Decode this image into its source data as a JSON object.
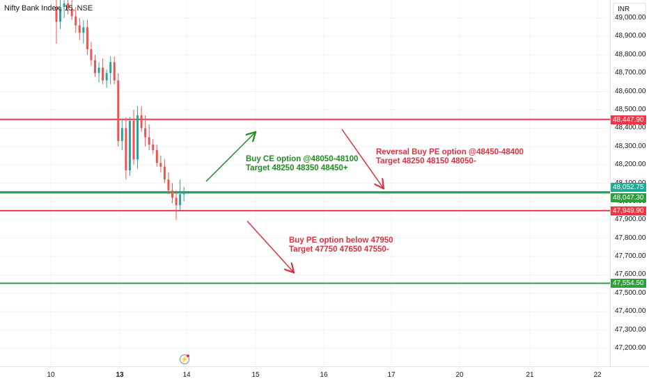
{
  "header": {
    "title": "Nifty Bank Index, 15, NSE",
    "currency": "INR"
  },
  "chart_data": {
    "type": "candlestick",
    "ylim": [
      47140,
      49120
    ],
    "yticks": [
      "49,000.00",
      "48,900.00",
      "48,800.00",
      "48,700.00",
      "48,600.00",
      "48,500.00",
      "48,400.00",
      "48,300.00",
      "48,200.00",
      "48,100.00",
      "48,000.00",
      "47,900.00",
      "47,800.00",
      "47,700.00",
      "47,600.00",
      "47,500.00",
      "47,400.00",
      "47,300.00",
      "47,200.00"
    ],
    "ytick_values": [
      49000,
      48900,
      48800,
      48700,
      48600,
      48500,
      48400,
      48300,
      48200,
      48100,
      48000,
      47900,
      47800,
      47700,
      47600,
      47500,
      47400,
      47300,
      47200
    ],
    "xticks": [
      {
        "label": "10",
        "bold": false
      },
      {
        "label": "13",
        "bold": true
      },
      {
        "label": "14",
        "bold": false
      },
      {
        "label": "15",
        "bold": false
      },
      {
        "label": "16",
        "bold": false
      },
      {
        "label": "17",
        "bold": false
      },
      {
        "label": "20",
        "bold": false
      },
      {
        "label": "21",
        "bold": false
      },
      {
        "label": "22",
        "bold": false
      }
    ],
    "levels": [
      {
        "value": 48447.9,
        "label": "48,447.90",
        "color": "#f23645"
      },
      {
        "value": 48052.75,
        "label": "48,052.75",
        "color": "#22ab94"
      },
      {
        "value": 48047.3,
        "label": "48,047.30",
        "color": "#2e9e3e"
      },
      {
        "value": 47949.9,
        "label": "47,949.90",
        "color": "#f23645"
      },
      {
        "value": 47554.5,
        "label": "47,554.50",
        "color": "#2e9e3e"
      }
    ],
    "candles": [
      [
        49060,
        49120,
        48860,
        48980
      ],
      [
        48980,
        49100,
        48940,
        49060
      ],
      [
        49060,
        49120,
        49000,
        49080
      ],
      [
        49080,
        49120,
        49020,
        49050
      ],
      [
        49050,
        49100,
        48990,
        49010
      ],
      [
        49010,
        49060,
        48920,
        48960
      ],
      [
        48960,
        49000,
        48880,
        48920
      ],
      [
        48920,
        48990,
        48860,
        48950
      ],
      [
        48950,
        48990,
        48800,
        48830
      ],
      [
        48830,
        48870,
        48740,
        48770
      ],
      [
        48770,
        48800,
        48680,
        48700
      ],
      [
        48700,
        48760,
        48650,
        48730
      ],
      [
        48730,
        48780,
        48640,
        48660
      ],
      [
        48660,
        48720,
        48620,
        48700
      ],
      [
        48700,
        48790,
        48640,
        48760
      ],
      [
        48760,
        48790,
        48640,
        48660
      ],
      [
        48660,
        48700,
        48300,
        48330
      ],
      [
        48330,
        48450,
        48280,
        48400
      ],
      [
        48400,
        48460,
        48120,
        48170
      ],
      [
        48170,
        48460,
        48140,
        48440
      ],
      [
        48440,
        48500,
        48200,
        48230
      ],
      [
        48230,
        48520,
        48180,
        48470
      ],
      [
        48470,
        48520,
        48380,
        48400
      ],
      [
        48400,
        48470,
        48300,
        48350
      ],
      [
        48350,
        48420,
        48280,
        48310
      ],
      [
        48310,
        48340,
        48260,
        48280
      ],
      [
        48280,
        48310,
        48190,
        48210
      ],
      [
        48210,
        48250,
        48160,
        48190
      ],
      [
        48190,
        48230,
        48100,
        48120
      ],
      [
        48120,
        48160,
        48040,
        48060
      ],
      [
        48060,
        48100,
        47990,
        48020
      ],
      [
        48020,
        48060,
        47900,
        47980
      ],
      [
        47980,
        48120,
        47950,
        48040
      ],
      [
        48040,
        48080,
        48000,
        48047
      ]
    ]
  },
  "annotations": {
    "buy_ce": {
      "line1": "Buy CE option @48050-48100",
      "line2": "Target 48250 48350 48450+"
    },
    "reversal_pe": {
      "line1": "Reversal Buy PE option @48450-48400",
      "line2": "Target 48250 48150 48050-"
    },
    "buy_pe": {
      "line1": "Buy PE option below 47950",
      "line2": "Target 47750 47650 47550-"
    }
  },
  "colors": {
    "up": "#26a69a",
    "down": "#ef5350",
    "green_text": "#228b22",
    "red_text": "#e03040",
    "grid": "#f0f3fa"
  }
}
